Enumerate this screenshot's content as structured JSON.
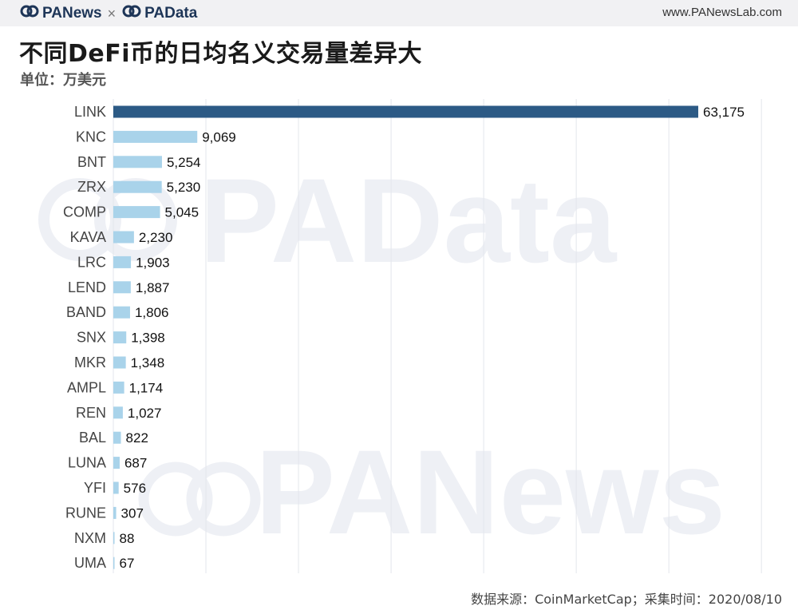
{
  "header": {
    "brand_left": "PANews",
    "brand_sep": "×",
    "brand_right": "PAData",
    "site": "www.PANewsLab.com"
  },
  "title": "不同DeFi币的日均名义交易量差异大",
  "unit": "单位：万美元",
  "watermark": {
    "top": "PAData",
    "bottom": "PANews"
  },
  "footer": "数据来源：CoinMarketCap；采集时间：2020/08/10",
  "colors": {
    "highlight": "#2c5a85",
    "light": "#a9d3ea",
    "grid": "#e3e6ec"
  },
  "chart_data": {
    "type": "bar",
    "orientation": "horizontal",
    "title": "不同DeFi币的日均名义交易量差异大",
    "unit": "单位：万美元",
    "categories": [
      "LINK",
      "KNC",
      "BNT",
      "ZRX",
      "COMP",
      "KAVA",
      "LRC",
      "LEND",
      "BAND",
      "SNX",
      "MKR",
      "AMPL",
      "REN",
      "BAL",
      "LUNA",
      "YFI",
      "RUNE",
      "NXM",
      "UMA"
    ],
    "values": [
      63175,
      9069,
      5254,
      5230,
      5045,
      2230,
      1903,
      1887,
      1806,
      1398,
      1348,
      1174,
      1027,
      822,
      687,
      576,
      307,
      88,
      67
    ],
    "value_labels": [
      "63,175",
      "9,069",
      "5,254",
      "5,230",
      "5,045",
      "2,230",
      "1,903",
      "1,887",
      "1,806",
      "1,398",
      "1,348",
      "1,174",
      "1,027",
      "822",
      "687",
      "576",
      "307",
      "88",
      "67"
    ],
    "xlim": [
      0,
      70000
    ],
    "grid": true,
    "legend": "none"
  }
}
